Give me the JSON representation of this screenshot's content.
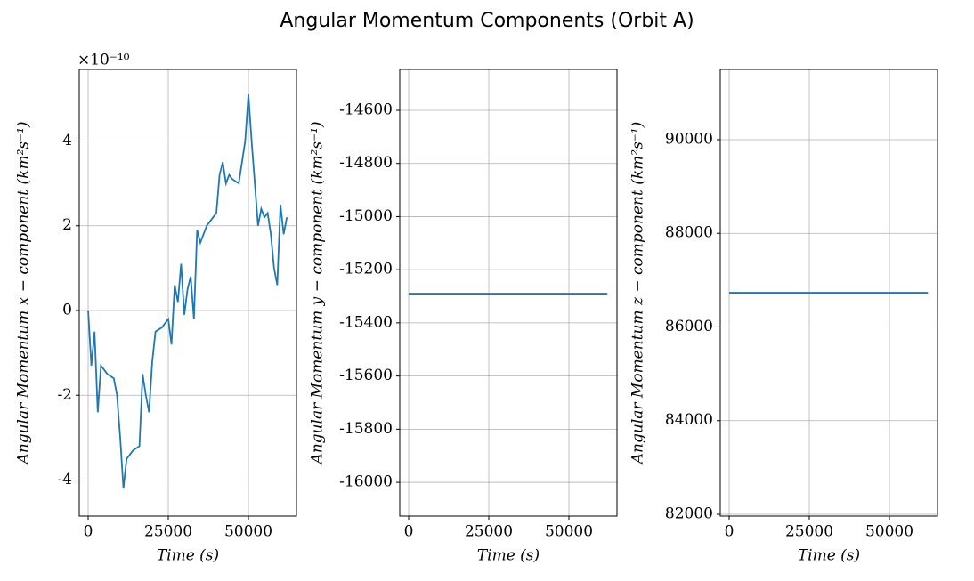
{
  "title": "Angular Momentum Components (Orbit A)",
  "chart_data": [
    {
      "type": "line",
      "x_label": "Time (s)",
      "y_label": "Angular Momentum x − component (km²s⁻¹)",
      "y_offset_label": "×10⁻¹⁰",
      "x": [
        0,
        1000,
        2000,
        3000,
        4000,
        6000,
        8000,
        9000,
        10000,
        11000,
        12000,
        14000,
        16000,
        17000,
        18000,
        19000,
        20000,
        21000,
        23000,
        25000,
        26000,
        27000,
        28000,
        29000,
        30000,
        31000,
        32000,
        33000,
        34000,
        35000,
        37000,
        39000,
        40000,
        41000,
        42000,
        43000,
        44000,
        45000,
        47000,
        48000,
        49000,
        50000,
        51000,
        52000,
        53000,
        54000,
        55000,
        56000,
        57000,
        58000,
        59000,
        60000,
        61000,
        62000
      ],
      "values": [
        0,
        -1.3,
        -0.5,
        -2.4,
        -1.3,
        -1.5,
        -1.6,
        -2.0,
        -3.0,
        -4.2,
        -3.5,
        -3.3,
        -3.2,
        -1.5,
        -2.0,
        -2.4,
        -1.2,
        -0.5,
        -0.4,
        -0.2,
        -0.8,
        0.6,
        0.2,
        1.1,
        -0.1,
        0.5,
        0.8,
        -0.2,
        1.9,
        1.6,
        2.0,
        2.2,
        2.3,
        3.2,
        3.5,
        3.0,
        3.2,
        3.1,
        3.0,
        3.5,
        4.0,
        5.1,
        4.0,
        3.0,
        2.0,
        2.4,
        2.2,
        2.3,
        1.8,
        1.0,
        0.6,
        2.5,
        1.8,
        2.2
      ],
      "color": "#1f77b4",
      "xlim": [
        -2780,
        65000
      ],
      "xticks": [
        0,
        25000,
        50000
      ],
      "ylim": [
        -4.85,
        5.69
      ],
      "yticks": [
        -4,
        -2,
        0,
        2,
        4
      ],
      "grid": true
    },
    {
      "type": "line",
      "x_label": "Time (s)",
      "y_label": "Angular Momentum y − component (km²s⁻¹)",
      "x": [
        0,
        62000
      ],
      "values": [
        -15290,
        -15290
      ],
      "color": "#1f77b4",
      "xlim": [
        -2780,
        65000
      ],
      "xticks": [
        0,
        25000,
        50000
      ],
      "ylim": [
        -16127,
        -14446
      ],
      "yticks": [
        -16000,
        -15800,
        -15600,
        -15400,
        -15200,
        -15000,
        -14800,
        -14600
      ],
      "grid": true
    },
    {
      "type": "line",
      "x_label": "Time (s)",
      "y_label": "Angular Momentum z − component (km²s⁻¹)",
      "x": [
        0,
        62000
      ],
      "values": [
        86730,
        86730
      ],
      "color": "#1f77b4",
      "xlim": [
        -2780,
        65000
      ],
      "xticks": [
        0,
        25000,
        50000
      ],
      "ylim": [
        81962,
        91501
      ],
      "yticks": [
        82000,
        84000,
        86000,
        88000,
        90000
      ],
      "grid": true
    }
  ]
}
